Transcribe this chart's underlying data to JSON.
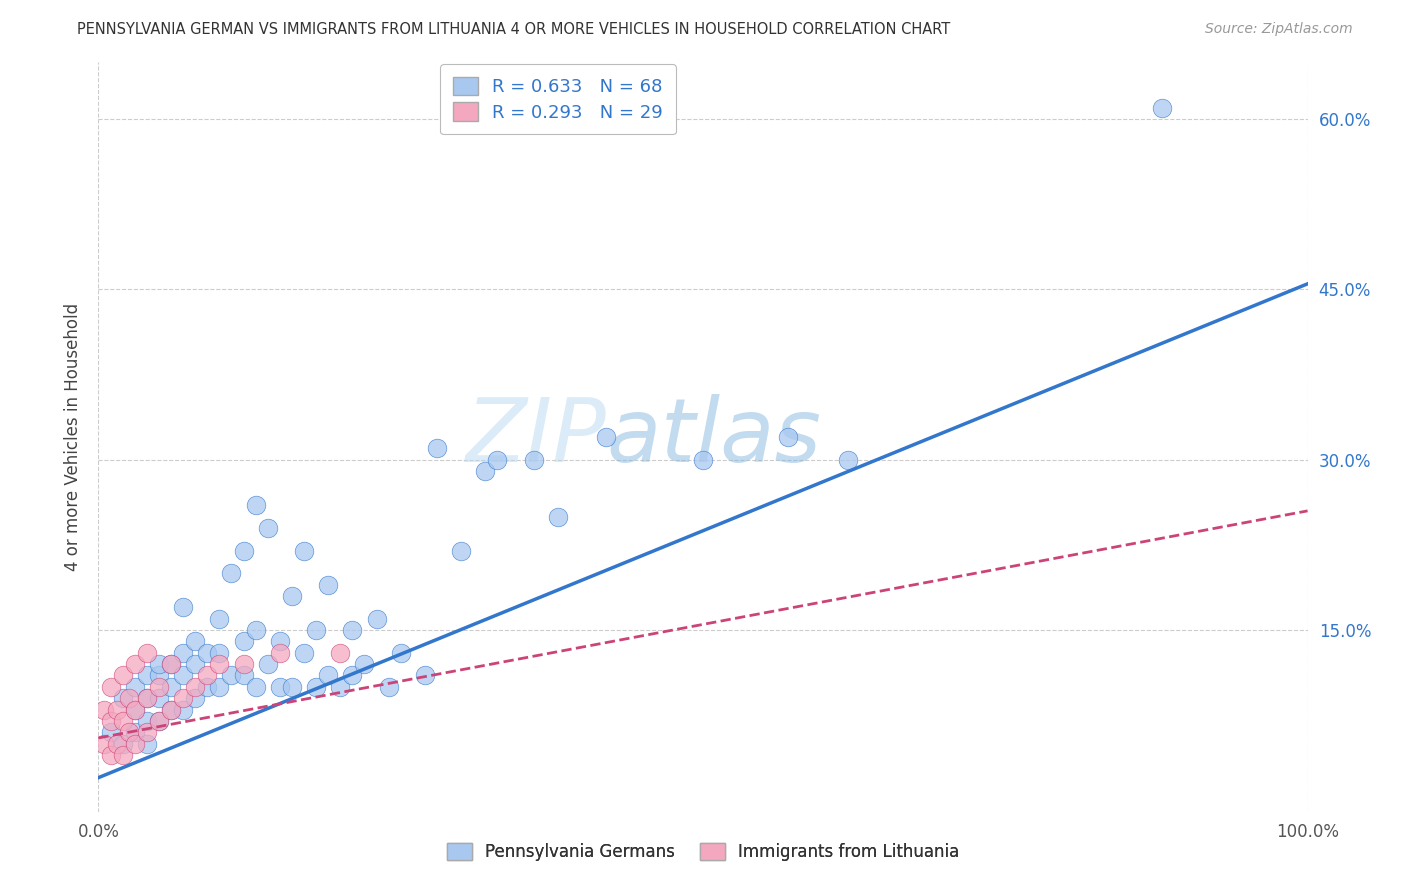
{
  "title": "PENNSYLVANIA GERMAN VS IMMIGRANTS FROM LITHUANIA 4 OR MORE VEHICLES IN HOUSEHOLD CORRELATION CHART",
  "source": "Source: ZipAtlas.com",
  "ylabel_label": "4 or more Vehicles in Household",
  "blue_R": 0.633,
  "blue_N": 68,
  "pink_R": 0.293,
  "pink_N": 29,
  "blue_color": "#A8C8F0",
  "pink_color": "#F4A8C0",
  "blue_line_color": "#3377CC",
  "pink_line_color": "#CC4477",
  "legend_label_blue": "Pennsylvania Germans",
  "legend_label_pink": "Immigrants from Lithuania",
  "blue_scatter_x": [
    0.01,
    0.02,
    0.02,
    0.03,
    0.03,
    0.03,
    0.04,
    0.04,
    0.04,
    0.04,
    0.05,
    0.05,
    0.05,
    0.05,
    0.06,
    0.06,
    0.06,
    0.07,
    0.07,
    0.07,
    0.07,
    0.08,
    0.08,
    0.08,
    0.09,
    0.09,
    0.1,
    0.1,
    0.1,
    0.11,
    0.11,
    0.12,
    0.12,
    0.12,
    0.13,
    0.13,
    0.13,
    0.14,
    0.14,
    0.15,
    0.15,
    0.16,
    0.16,
    0.17,
    0.17,
    0.18,
    0.18,
    0.19,
    0.19,
    0.2,
    0.21,
    0.21,
    0.22,
    0.23,
    0.24,
    0.25,
    0.27,
    0.28,
    0.3,
    0.32,
    0.33,
    0.36,
    0.38,
    0.42,
    0.5,
    0.57,
    0.62,
    0.88
  ],
  "blue_scatter_y": [
    0.06,
    0.05,
    0.09,
    0.06,
    0.08,
    0.1,
    0.05,
    0.07,
    0.09,
    0.11,
    0.07,
    0.09,
    0.11,
    0.12,
    0.08,
    0.1,
    0.12,
    0.08,
    0.11,
    0.13,
    0.17,
    0.09,
    0.12,
    0.14,
    0.1,
    0.13,
    0.1,
    0.13,
    0.16,
    0.11,
    0.2,
    0.11,
    0.14,
    0.22,
    0.1,
    0.15,
    0.26,
    0.12,
    0.24,
    0.1,
    0.14,
    0.1,
    0.18,
    0.13,
    0.22,
    0.1,
    0.15,
    0.11,
    0.19,
    0.1,
    0.11,
    0.15,
    0.12,
    0.16,
    0.1,
    0.13,
    0.11,
    0.31,
    0.22,
    0.29,
    0.3,
    0.3,
    0.25,
    0.32,
    0.3,
    0.32,
    0.3,
    0.61
  ],
  "pink_scatter_x": [
    0.005,
    0.005,
    0.01,
    0.01,
    0.01,
    0.015,
    0.015,
    0.02,
    0.02,
    0.02,
    0.025,
    0.025,
    0.03,
    0.03,
    0.03,
    0.04,
    0.04,
    0.04,
    0.05,
    0.05,
    0.06,
    0.06,
    0.07,
    0.08,
    0.09,
    0.1,
    0.12,
    0.15,
    0.2
  ],
  "pink_scatter_y": [
    0.05,
    0.08,
    0.04,
    0.07,
    0.1,
    0.05,
    0.08,
    0.04,
    0.07,
    0.11,
    0.06,
    0.09,
    0.05,
    0.08,
    0.12,
    0.06,
    0.09,
    0.13,
    0.07,
    0.1,
    0.08,
    0.12,
    0.09,
    0.1,
    0.11,
    0.12,
    0.12,
    0.13,
    0.13
  ],
  "blue_line_x0": 0.0,
  "blue_line_y0": 0.02,
  "blue_line_x1": 1.0,
  "blue_line_y1": 0.455,
  "pink_line_x0": 0.0,
  "pink_line_y0": 0.055,
  "pink_line_x1": 1.0,
  "pink_line_y1": 0.255,
  "xlim": [
    0.0,
    1.0
  ],
  "ylim": [
    -0.01,
    0.65
  ],
  "ytick_vals": [
    0.15,
    0.3,
    0.45,
    0.6
  ],
  "ytick_labels": [
    "15.0%",
    "30.0%",
    "45.0%",
    "60.0%"
  ],
  "xtick_vals": [
    0.0,
    1.0
  ],
  "xtick_labels": [
    "0.0%",
    "100.0%"
  ],
  "background_color": "#FFFFFF",
  "grid_color": "#CCCCCC"
}
